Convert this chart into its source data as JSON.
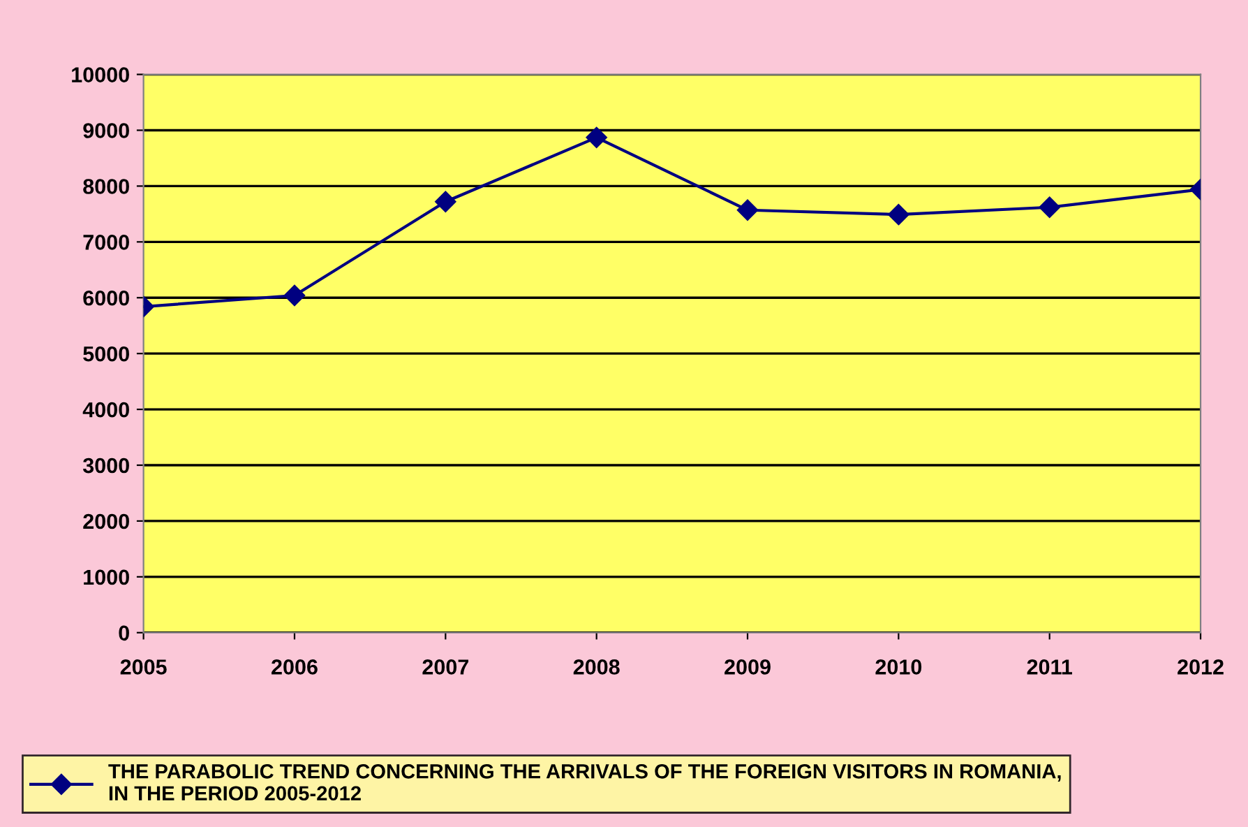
{
  "chart_data": {
    "type": "line",
    "categories": [
      "2005",
      "2006",
      "2007",
      "2008",
      "2009",
      "2010",
      "2011",
      "2012"
    ],
    "series": [
      {
        "name": "THE PARABOLIC TREND CONCERNING THE ARRIVALS OF THE FOREIGN VISITORS IN ROMANIA,\nIN THE PERIOD 2005-2012",
        "color": "#000080",
        "values": [
          5840,
          6040,
          7720,
          8870,
          7570,
          7490,
          7620,
          7940
        ]
      }
    ],
    "ylim": [
      0,
      10000
    ],
    "yticks": [
      0,
      1000,
      2000,
      3000,
      4000,
      5000,
      6000,
      7000,
      8000,
      9000,
      10000
    ],
    "grid": "y",
    "legend": "bottom",
    "marker": "diamond",
    "line_style": "solid"
  }
}
